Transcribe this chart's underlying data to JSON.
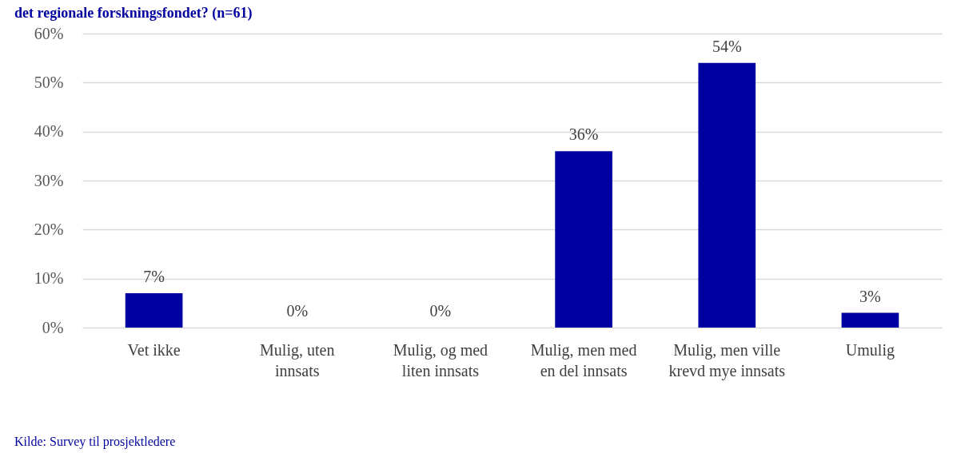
{
  "chart_data": {
    "type": "bar",
    "title": "det regionale forskningsfondet? (n=61)",
    "categories": [
      "Vet ikke",
      "Mulig, uten innsats",
      "Mulig, og med liten innsats",
      "Mulig, men med en del innsats",
      "Mulig, men ville krevd mye innsats",
      "Umulig"
    ],
    "values": [
      7,
      0,
      0,
      36,
      54,
      3
    ],
    "value_labels": [
      "7%",
      "0%",
      "0%",
      "36%",
      "54%",
      "3%"
    ],
    "color": "#0000a0",
    "ylim": [
      0,
      60
    ],
    "yticks": [
      {
        "value": 0,
        "label": "0%"
      },
      {
        "value": 10,
        "label": "10%"
      },
      {
        "value": 20,
        "label": "20%"
      },
      {
        "value": 30,
        "label": "30%"
      },
      {
        "value": 40,
        "label": "40%"
      },
      {
        "value": 50,
        "label": "50%"
      },
      {
        "value": 60,
        "label": "60%"
      }
    ],
    "grid": "y",
    "annotations": [
      "Kilde: Survey til prosjektledere"
    ]
  }
}
